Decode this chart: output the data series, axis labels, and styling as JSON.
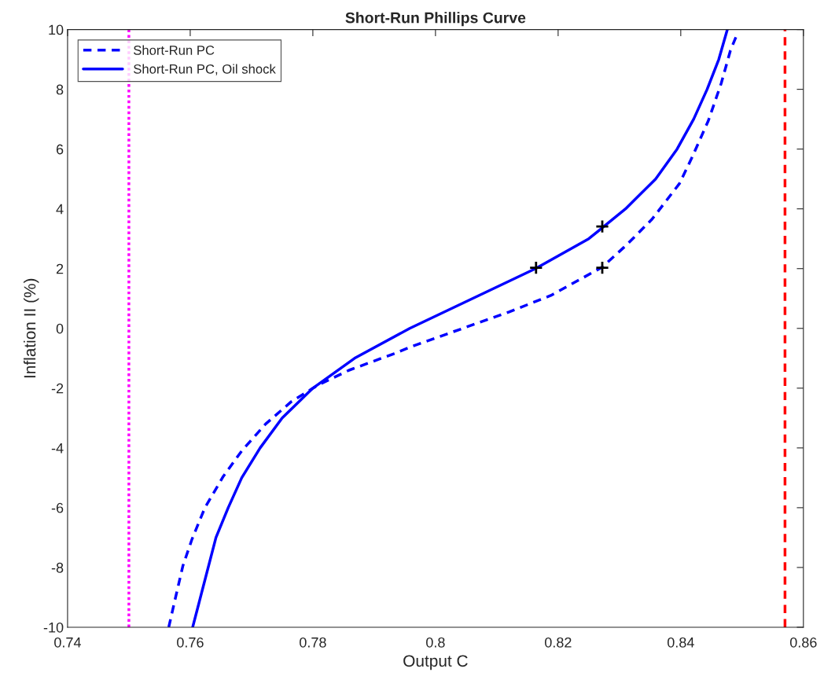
{
  "chart_data": {
    "type": "line",
    "title": "Short-Run Phillips Curve",
    "xlabel": "Output C",
    "ylabel": "Inflation II (%)",
    "xlim": [
      0.74,
      0.86
    ],
    "xticks": [
      0.74,
      0.76,
      0.78,
      0.8,
      0.82,
      0.84,
      0.86
    ],
    "ylim": [
      -10,
      10
    ],
    "yticks": [
      -10,
      -8,
      -6,
      -4,
      -2,
      0,
      2,
      4,
      6,
      8,
      10
    ],
    "grid": false,
    "legend": "top left",
    "series": [
      {
        "name": "Short-Run PC",
        "color": "#0000ff",
        "line_style": "dashed",
        "marker": "none",
        "x": [
          0.7565,
          0.7575,
          0.7588,
          0.7603,
          0.7624,
          0.7654,
          0.7684,
          0.7723,
          0.7765,
          0.7808,
          0.7859,
          0.7932,
          0.7962,
          0.812,
          0.8188,
          0.8272,
          0.8312,
          0.8353,
          0.8398,
          0.8419,
          0.8445,
          0.8466,
          0.8481,
          0.8491
        ],
        "values": [
          -10,
          -9.1,
          -7.95,
          -7.05,
          -6,
          -4.95,
          -4.1,
          -3.2,
          -2.45,
          -1.9,
          -1.4,
          -0.85,
          -0.6,
          0.55,
          1.1,
          2.05,
          2.8,
          3.65,
          4.85,
          5.75,
          6.95,
          8.2,
          9.3,
          9.8
        ]
      },
      {
        "name": "Short-Run PC, Oil shock",
        "color": "#0000ff",
        "line_style": "solid",
        "marker": "none",
        "x": [
          0.7604,
          0.7642,
          0.7662,
          0.7684,
          0.7714,
          0.775,
          0.78,
          0.7868,
          0.7958,
          0.8163,
          0.825,
          0.831,
          0.8359,
          0.8394,
          0.8421,
          0.8443,
          0.8462,
          0.8476
        ],
        "values": [
          -10,
          -7,
          -6,
          -5,
          -4,
          -3,
          -2,
          -1,
          0,
          2,
          3,
          4,
          5,
          6,
          7,
          8,
          9,
          10
        ]
      },
      {
        "type": "scatter",
        "color": "#000000",
        "marker": "cross",
        "x": [
          0.8164,
          0.8272,
          0.8272
        ],
        "values": [
          2.03,
          3.41,
          2.03
        ]
      }
    ],
    "ref_lines": [
      {
        "axis": "x",
        "value": 0.75,
        "color": "#ff00ff",
        "line_style": "dotted"
      },
      {
        "axis": "x",
        "value": 0.857,
        "color": "#ff0000",
        "line_style": "dashed"
      }
    ]
  }
}
